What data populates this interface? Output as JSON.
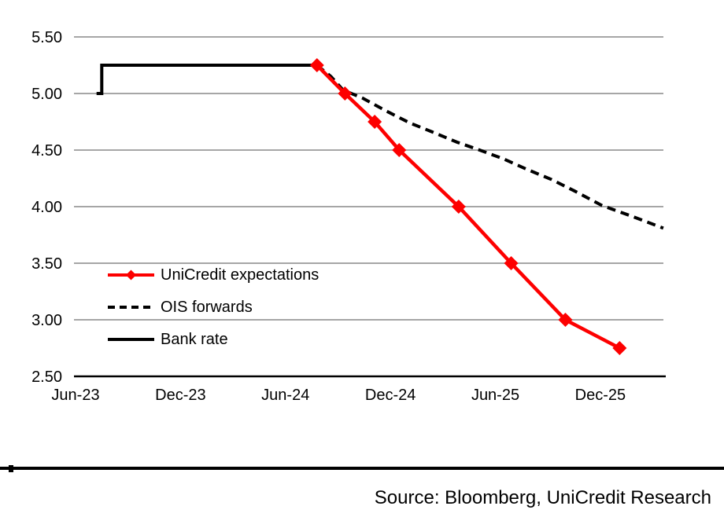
{
  "chart_data": {
    "type": "line",
    "title": "",
    "x_axis": {
      "unit": "months-after-Jun-2023",
      "ticks": [
        {
          "label": "Jun-23",
          "m": 0
        },
        {
          "label": "Dec-23",
          "m": 6
        },
        {
          "label": "Jun-24",
          "m": 12
        },
        {
          "label": "Dec-24",
          "m": 18
        },
        {
          "label": "Jun-25",
          "m": 24
        },
        {
          "label": "Dec-25",
          "m": 30
        }
      ]
    },
    "y_axis": {
      "min": 2.5,
      "max": 5.5,
      "step": 0.5,
      "tick_labels": [
        "5.50",
        "5.00",
        "4.50",
        "4.00",
        "3.50",
        "3.00",
        "2.50"
      ]
    },
    "grid": "horizontal",
    "legend_position": "middle-left",
    "series": [
      {
        "name": "UniCredit expectations",
        "color": "#fd0000",
        "style": "solid-diamond",
        "points": [
          {
            "date": "Aug-24",
            "m": 13.8,
            "v": 5.25
          },
          {
            "date": "Sep-24",
            "m": 15.4,
            "v": 5.0
          },
          {
            "date": "Nov-24",
            "m": 17.1,
            "v": 4.75
          },
          {
            "date": "Dec-24",
            "m": 18.5,
            "v": 4.5
          },
          {
            "date": "Mar-25",
            "m": 21.9,
            "v": 4.0
          },
          {
            "date": "Jun-25",
            "m": 24.9,
            "v": 3.5
          },
          {
            "date": "Sep-25",
            "m": 28.0,
            "v": 3.0
          },
          {
            "date": "Dec-25",
            "m": 31.1,
            "v": 2.75
          }
        ]
      },
      {
        "name": "OIS forwards",
        "color": "#000000",
        "style": "dashed",
        "points": [
          {
            "m": 13.8,
            "v": 5.25
          },
          {
            "m": 14.6,
            "v": 5.15
          },
          {
            "m": 15.3,
            "v": 5.03
          },
          {
            "m": 16.4,
            "v": 4.96
          },
          {
            "m": 17.7,
            "v": 4.85
          },
          {
            "m": 19.1,
            "v": 4.74
          },
          {
            "m": 20.4,
            "v": 4.66
          },
          {
            "m": 21.8,
            "v": 4.57
          },
          {
            "m": 23.1,
            "v": 4.5
          },
          {
            "m": 24.5,
            "v": 4.42
          },
          {
            "m": 25.8,
            "v": 4.33
          },
          {
            "m": 27.2,
            "v": 4.24
          },
          {
            "m": 28.5,
            "v": 4.14
          },
          {
            "m": 30.1,
            "v": 4.01
          },
          {
            "m": 31.9,
            "v": 3.91
          },
          {
            "m": 33.6,
            "v": 3.81
          }
        ]
      },
      {
        "name": "Bank rate",
        "color": "#000000",
        "style": "solid",
        "points": [
          {
            "date": "Jul-23",
            "m": 1.2,
            "v": 5.0
          },
          {
            "m": 1.5,
            "v": 5.0
          },
          {
            "m": 1.5,
            "v": 5.25
          },
          {
            "date": "Aug-24",
            "m": 13.8,
            "v": 5.25
          }
        ]
      }
    ]
  },
  "footer": {
    "source": "Source: Bloomberg, UniCredit Research"
  },
  "colors": {
    "background": "#ffffff",
    "gridline": "#a6a6a6",
    "axis": "#000000",
    "text": "#000000",
    "accent_red": "#fd0000"
  }
}
